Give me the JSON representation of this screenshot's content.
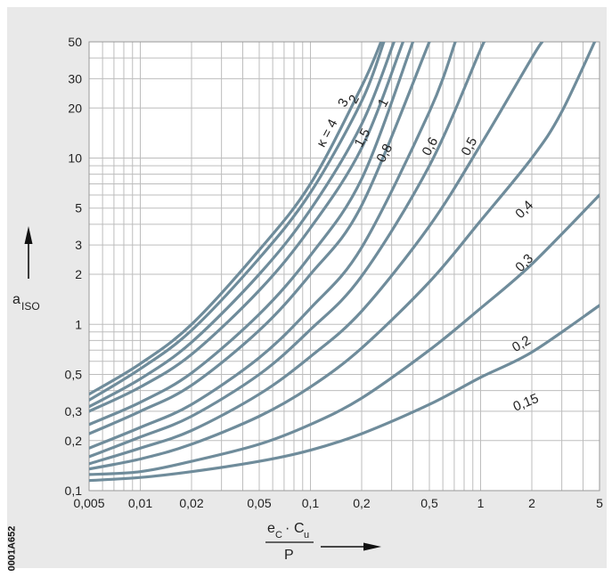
{
  "figure_code": "0001A652",
  "chart_data": {
    "type": "line",
    "title": "",
    "x_scale": "log",
    "y_scale": "log",
    "xlim": [
      0.005,
      5
    ],
    "ylim": [
      0.1,
      50
    ],
    "grid": true,
    "x_ticks": [
      "0,005",
      "0,01",
      "0,02",
      "0,05",
      "0,1",
      "0,2",
      "0,5",
      "1",
      "2",
      "5"
    ],
    "x_tick_values": [
      0.005,
      0.01,
      0.02,
      0.05,
      0.1,
      0.2,
      0.5,
      1,
      2,
      5
    ],
    "y_ticks": [
      "0,1",
      "0,2",
      "0,3",
      "0,5",
      "1",
      "2",
      "3",
      "5",
      "10",
      "20",
      "30",
      "50"
    ],
    "y_tick_values": [
      0.1,
      0.2,
      0.3,
      0.5,
      1,
      2,
      3,
      5,
      10,
      20,
      30,
      50
    ],
    "ylabel": {
      "main": "a",
      "sub": "ISO"
    },
    "xlabel": {
      "num_a": "e",
      "num_a_sub": "C",
      "dot": "·",
      "num_b": "C",
      "num_b_sub": "u",
      "den": "P"
    },
    "series": [
      {
        "name": "κ = 4",
        "points": [
          [
            0.005,
            0.38
          ],
          [
            0.01,
            0.58
          ],
          [
            0.02,
            1.0
          ],
          [
            0.05,
            2.8
          ],
          [
            0.1,
            7.0
          ],
          [
            0.2,
            27
          ],
          [
            0.26,
            50
          ]
        ]
      },
      {
        "name": "3",
        "points": [
          [
            0.005,
            0.35
          ],
          [
            0.01,
            0.54
          ],
          [
            0.02,
            0.92
          ],
          [
            0.05,
            2.5
          ],
          [
            0.1,
            6.2
          ],
          [
            0.2,
            22
          ],
          [
            0.27,
            50
          ]
        ]
      },
      {
        "name": "2",
        "points": [
          [
            0.005,
            0.32
          ],
          [
            0.01,
            0.47
          ],
          [
            0.02,
            0.78
          ],
          [
            0.05,
            2.0
          ],
          [
            0.1,
            4.9
          ],
          [
            0.2,
            16
          ],
          [
            0.31,
            50
          ]
        ]
      },
      {
        "name": "1,5",
        "points": [
          [
            0.005,
            0.3
          ],
          [
            0.01,
            0.42
          ],
          [
            0.02,
            0.66
          ],
          [
            0.05,
            1.6
          ],
          [
            0.1,
            3.8
          ],
          [
            0.2,
            11.5
          ],
          [
            0.35,
            50
          ]
        ]
      },
      {
        "name": "1",
        "points": [
          [
            0.005,
            0.25
          ],
          [
            0.01,
            0.34
          ],
          [
            0.02,
            0.51
          ],
          [
            0.05,
            1.15
          ],
          [
            0.1,
            2.6
          ],
          [
            0.2,
            7.5
          ],
          [
            0.4,
            50
          ]
        ]
      },
      {
        "name": "0,8",
        "points": [
          [
            0.005,
            0.22
          ],
          [
            0.01,
            0.3
          ],
          [
            0.02,
            0.43
          ],
          [
            0.05,
            0.92
          ],
          [
            0.1,
            2.0
          ],
          [
            0.2,
            5.2
          ],
          [
            0.5,
            50
          ]
        ]
      },
      {
        "name": "0,6",
        "points": [
          [
            0.005,
            0.18
          ],
          [
            0.01,
            0.24
          ],
          [
            0.02,
            0.33
          ],
          [
            0.05,
            0.63
          ],
          [
            0.1,
            1.25
          ],
          [
            0.2,
            2.9
          ],
          [
            0.5,
            19
          ],
          [
            0.71,
            50
          ]
        ]
      },
      {
        "name": "0,5",
        "points": [
          [
            0.005,
            0.16
          ],
          [
            0.01,
            0.21
          ],
          [
            0.02,
            0.28
          ],
          [
            0.05,
            0.5
          ],
          [
            0.1,
            0.93
          ],
          [
            0.2,
            1.95
          ],
          [
            0.5,
            9.0
          ],
          [
            1.0,
            45
          ],
          [
            1.05,
            50
          ]
        ]
      },
      {
        "name": "0,4",
        "points": [
          [
            0.005,
            0.145
          ],
          [
            0.01,
            0.18
          ],
          [
            0.02,
            0.23
          ],
          [
            0.05,
            0.38
          ],
          [
            0.1,
            0.64
          ],
          [
            0.2,
            1.2
          ],
          [
            0.5,
            3.9
          ],
          [
            1.0,
            12
          ],
          [
            2.0,
            40
          ],
          [
            2.3,
            50
          ]
        ]
      },
      {
        "name": "0,3",
        "points": [
          [
            0.005,
            0.135
          ],
          [
            0.01,
            0.155
          ],
          [
            0.02,
            0.19
          ],
          [
            0.05,
            0.28
          ],
          [
            0.1,
            0.42
          ],
          [
            0.2,
            0.72
          ],
          [
            0.5,
            1.8
          ],
          [
            1.0,
            4.2
          ],
          [
            2.0,
            10
          ],
          [
            3.0,
            19
          ],
          [
            5.0,
            58
          ]
        ]
      },
      {
        "name": "0,2",
        "points": [
          [
            0.005,
            0.125
          ],
          [
            0.01,
            0.13
          ],
          [
            0.02,
            0.15
          ],
          [
            0.05,
            0.19
          ],
          [
            0.1,
            0.25
          ],
          [
            0.2,
            0.36
          ],
          [
            0.5,
            0.7
          ],
          [
            1.0,
            1.25
          ],
          [
            2.0,
            2.3
          ],
          [
            5.0,
            6.0
          ]
        ]
      },
      {
        "name": "0,15",
        "points": [
          [
            0.005,
            0.115
          ],
          [
            0.01,
            0.12
          ],
          [
            0.02,
            0.13
          ],
          [
            0.05,
            0.15
          ],
          [
            0.1,
            0.175
          ],
          [
            0.2,
            0.22
          ],
          [
            0.5,
            0.33
          ],
          [
            1.0,
            0.48
          ],
          [
            2.0,
            0.68
          ],
          [
            5.0,
            1.3
          ]
        ]
      }
    ]
  }
}
